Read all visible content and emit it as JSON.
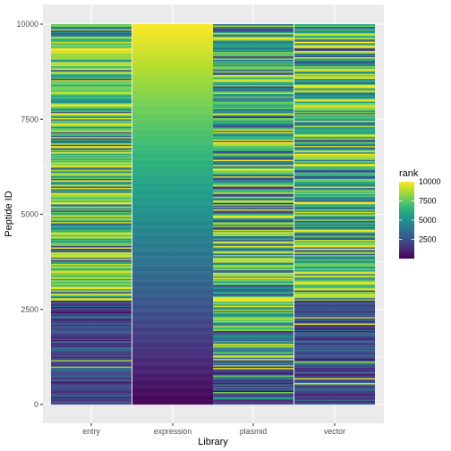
{
  "chart_data": {
    "type": "heatmap",
    "xlabel": "Library",
    "ylabel": "Peptide ID",
    "categories": [
      "entry",
      "expression",
      "plasmid",
      "vector"
    ],
    "y_ticks": [
      0,
      2500,
      5000,
      7500,
      10000
    ],
    "y_tick_labels": [
      "0",
      "2500",
      "5000",
      "7500",
      "10000"
    ],
    "ylim": [
      0,
      10000
    ],
    "fill_variable": "rank",
    "fill_range": [
      1,
      10000
    ],
    "colorbar_ticks": [
      2500,
      5000,
      7500,
      10000
    ],
    "colorbar_tick_labels": [
      "2500",
      "5000",
      "7500",
      "10000"
    ],
    "colormap": "viridis",
    "colormap_stops": [
      "#440154",
      "#482878",
      "#3e4989",
      "#31688e",
      "#26828e",
      "#1f9e89",
      "#35b779",
      "#6ece58",
      "#b5de2b",
      "#fde725"
    ],
    "legend_position": "right",
    "grid": true,
    "panel_background": "#ebebeb",
    "gridline_color": "#ffffff",
    "series": [
      {
        "category": "entry",
        "pattern": "rank is low (dark) for Peptide ID 0–2750 and high, strongly mixed for Peptide ID 2750–10000"
      },
      {
        "category": "expression",
        "pattern": "rank equals Peptide ID: smooth gradient from dark purple at 0 to yellow at 10000"
      },
      {
        "category": "plasmid",
        "pattern": "rank is mixed across all Peptide IDs, slightly lower near 0–1000"
      },
      {
        "category": "vector",
        "pattern": "rank is low for Peptide ID 0–2750 and mixed-high above"
      }
    ]
  }
}
